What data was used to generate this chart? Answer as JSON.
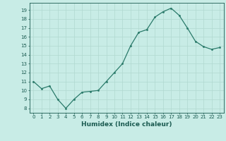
{
  "title": "",
  "xlabel": "Humidex (Indice chaleur)",
  "x_values": [
    0,
    1,
    2,
    3,
    4,
    5,
    6,
    7,
    8,
    9,
    10,
    11,
    12,
    13,
    14,
    15,
    16,
    17,
    18,
    19,
    20,
    21,
    22,
    23
  ],
  "y_values": [
    11,
    10.2,
    10.5,
    9.0,
    8.0,
    9.0,
    9.8,
    9.9,
    10.0,
    11.0,
    12.0,
    13.0,
    15.0,
    16.5,
    16.8,
    18.2,
    18.8,
    19.2,
    18.4,
    17.0,
    15.5,
    14.9,
    14.6,
    14.8
  ],
  "ylim": [
    7.5,
    19.8
  ],
  "xlim": [
    -0.5,
    23.5
  ],
  "yticks": [
    8,
    9,
    10,
    11,
    12,
    13,
    14,
    15,
    16,
    17,
    18,
    19
  ],
  "line_color": "#2a7a6a",
  "marker_color": "#2a7a6a",
  "bg_color": "#c8ece6",
  "grid_color": "#b0d8d0",
  "font_color": "#1a5a50",
  "xlabel_fontsize": 6.5,
  "tick_fontsize": 5.0
}
